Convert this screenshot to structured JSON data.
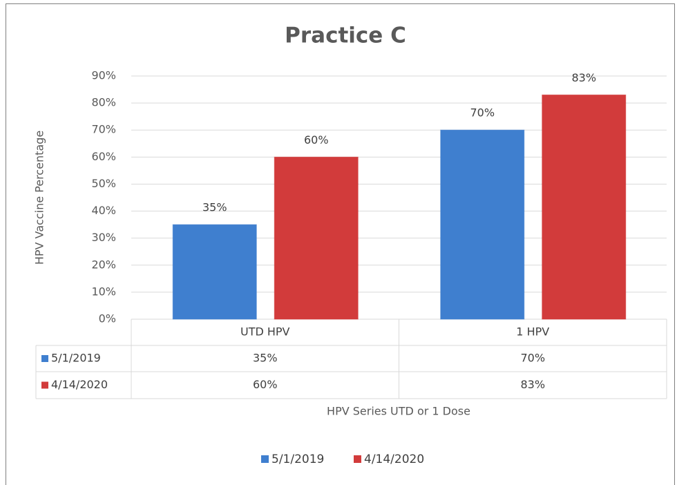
{
  "chart_data": {
    "type": "bar",
    "title": "Practice C",
    "ylabel": "HPV Vaccine Percentage",
    "xlabel": "HPV Series UTD or 1 Dose",
    "categories": [
      "UTD HPV",
      "1 HPV"
    ],
    "series": [
      {
        "name": "5/1/2019",
        "color": "#3f7fcf",
        "values": [
          35,
          70
        ],
        "value_labels": [
          "35%",
          "70%"
        ]
      },
      {
        "name": "4/14/2020",
        "color": "#d23b3b",
        "values": [
          60,
          83
        ],
        "value_labels": [
          "60%",
          "83%"
        ]
      }
    ],
    "ylim": [
      0,
      90
    ],
    "yticks": [
      {
        "value": 0,
        "label": "0%"
      },
      {
        "value": 10,
        "label": "10%"
      },
      {
        "value": 20,
        "label": "20%"
      },
      {
        "value": 30,
        "label": "30%"
      },
      {
        "value": 40,
        "label": "40%"
      },
      {
        "value": 50,
        "label": "50%"
      },
      {
        "value": 60,
        "label": "60%"
      },
      {
        "value": 70,
        "label": "70%"
      },
      {
        "value": 80,
        "label": "80%"
      },
      {
        "value": 90,
        "label": "90%"
      }
    ],
    "grid": true,
    "legend": "bottom"
  }
}
